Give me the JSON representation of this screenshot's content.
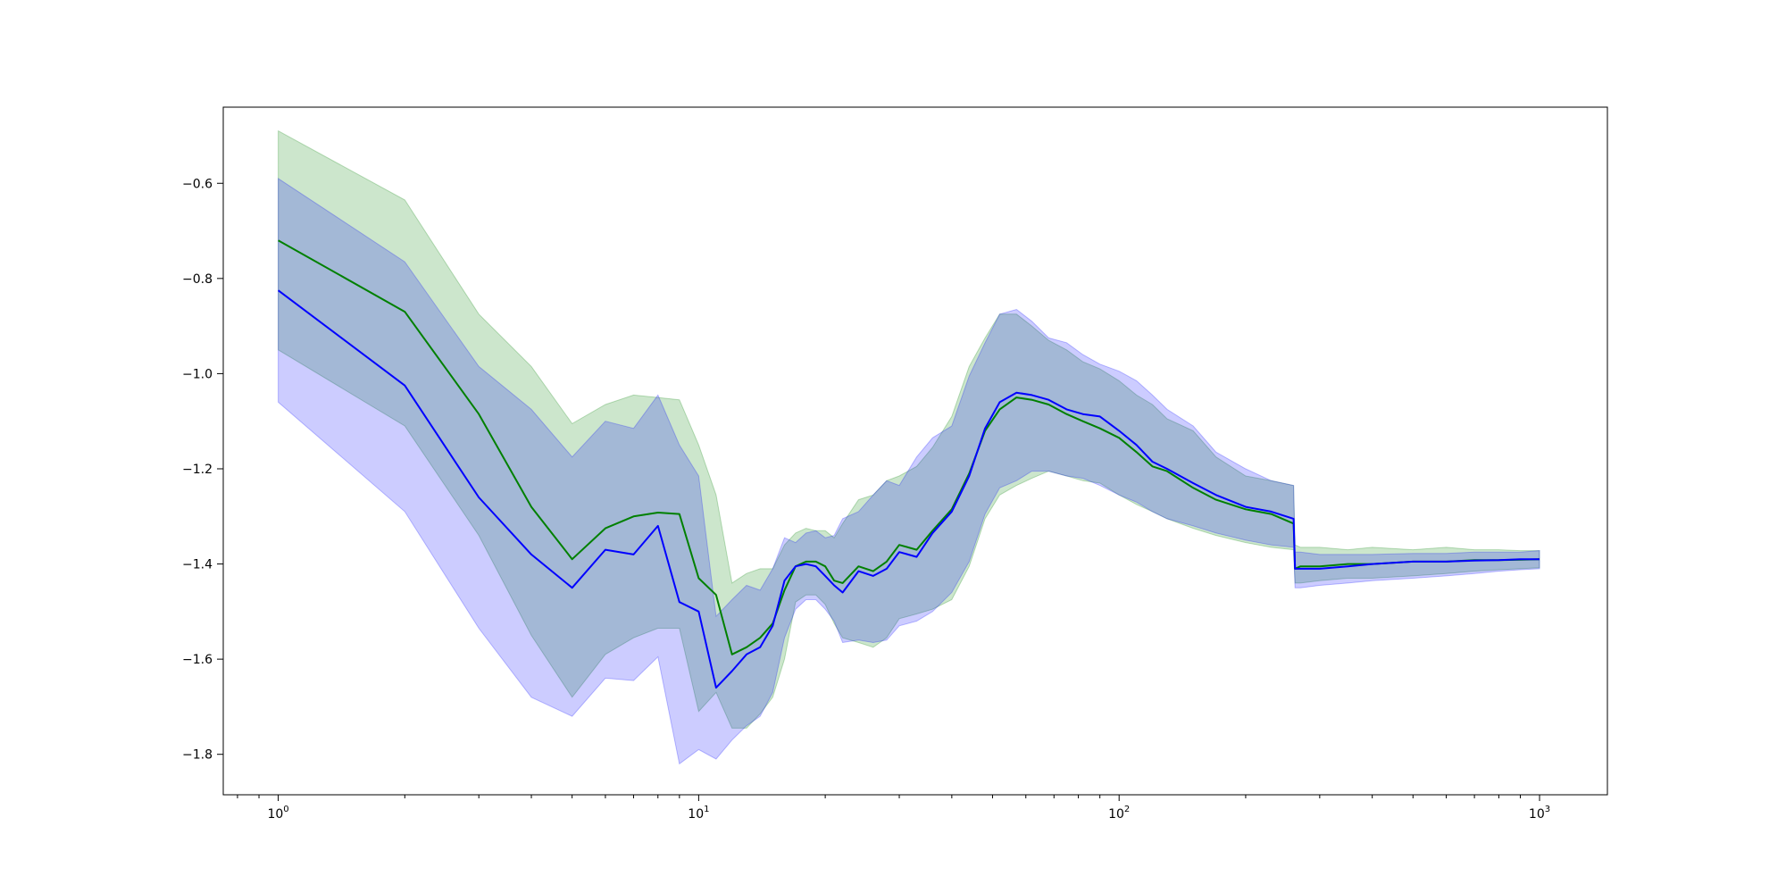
{
  "chart_data": {
    "type": "line",
    "title": "",
    "xlabel": "",
    "ylabel": "",
    "xscale": "log",
    "xlim": [
      0.74,
      1450
    ],
    "ylim": [
      -1.885,
      -0.44
    ],
    "grid": false,
    "legend": "none",
    "x_ticks": [
      {
        "value": 1,
        "base": "10",
        "exp": "0"
      },
      {
        "value": 10,
        "base": "10",
        "exp": "1"
      },
      {
        "value": 100,
        "base": "10",
        "exp": "2"
      },
      {
        "value": 1000,
        "base": "10",
        "exp": "3"
      }
    ],
    "y_ticks": [
      {
        "value": -0.6,
        "label": "−0.6"
      },
      {
        "value": -0.8,
        "label": "−0.8"
      },
      {
        "value": -1.0,
        "label": "−1.0"
      },
      {
        "value": -1.2,
        "label": "−1.2"
      },
      {
        "value": -1.4,
        "label": "−1.4"
      },
      {
        "value": -1.6,
        "label": "−1.6"
      },
      {
        "value": -1.8,
        "label": "−1.8"
      }
    ],
    "series": [
      {
        "color": "#008000",
        "band_color": "#008000",
        "band_opacity": 0.2,
        "x": [
          1,
          2,
          3,
          4,
          5,
          6,
          7,
          8,
          9,
          10,
          11,
          12,
          13,
          14,
          15,
          16,
          17,
          18,
          19,
          20,
          21,
          22,
          24,
          26,
          28,
          30,
          33,
          36,
          40,
          44,
          48,
          52,
          57,
          62,
          68,
          75,
          82,
          90,
          100,
          110,
          120,
          130,
          150,
          170,
          200,
          230,
          260,
          262,
          270,
          300,
          350,
          400,
          500,
          600,
          700,
          800,
          900,
          1000
        ],
        "y": [
          -0.72,
          -0.87,
          -1.085,
          -1.28,
          -1.39,
          -1.325,
          -1.3,
          -1.292,
          -1.295,
          -1.43,
          -1.465,
          -1.59,
          -1.575,
          -1.555,
          -1.525,
          -1.455,
          -1.405,
          -1.395,
          -1.395,
          -1.405,
          -1.435,
          -1.44,
          -1.405,
          -1.415,
          -1.395,
          -1.36,
          -1.37,
          -1.33,
          -1.285,
          -1.21,
          -1.12,
          -1.075,
          -1.05,
          -1.055,
          -1.065,
          -1.085,
          -1.1,
          -1.115,
          -1.135,
          -1.165,
          -1.195,
          -1.205,
          -1.24,
          -1.265,
          -1.285,
          -1.295,
          -1.315,
          -1.41,
          -1.405,
          -1.405,
          -1.4,
          -1.4,
          -1.395,
          -1.395,
          -1.392,
          -1.392,
          -1.391,
          -1.39
        ],
        "upper": [
          -0.49,
          -0.635,
          -0.875,
          -0.985,
          -1.105,
          -1.065,
          -1.045,
          -1.05,
          -1.055,
          -1.15,
          -1.255,
          -1.44,
          -1.42,
          -1.41,
          -1.41,
          -1.36,
          -1.335,
          -1.325,
          -1.33,
          -1.33,
          -1.345,
          -1.315,
          -1.265,
          -1.255,
          -1.225,
          -1.215,
          -1.195,
          -1.155,
          -1.09,
          -0.985,
          -0.925,
          -0.875,
          -0.875,
          -0.9,
          -0.93,
          -0.95,
          -0.975,
          -0.99,
          -1.015,
          -1.045,
          -1.065,
          -1.095,
          -1.12,
          -1.175,
          -1.215,
          -1.225,
          -1.235,
          -1.36,
          -1.365,
          -1.365,
          -1.37,
          -1.365,
          -1.37,
          -1.365,
          -1.37,
          -1.37,
          -1.372,
          -1.372
        ],
        "lower": [
          -0.95,
          -1.11,
          -1.34,
          -1.55,
          -1.68,
          -1.59,
          -1.555,
          -1.535,
          -1.535,
          -1.71,
          -1.67,
          -1.745,
          -1.745,
          -1.715,
          -1.68,
          -1.6,
          -1.48,
          -1.465,
          -1.465,
          -1.485,
          -1.525,
          -1.555,
          -1.565,
          -1.575,
          -1.555,
          -1.515,
          -1.505,
          -1.495,
          -1.475,
          -1.405,
          -1.305,
          -1.255,
          -1.235,
          -1.22,
          -1.205,
          -1.215,
          -1.225,
          -1.23,
          -1.255,
          -1.275,
          -1.29,
          -1.305,
          -1.325,
          -1.34,
          -1.355,
          -1.365,
          -1.37,
          -1.44,
          -1.44,
          -1.435,
          -1.43,
          -1.43,
          -1.425,
          -1.42,
          -1.415,
          -1.412,
          -1.41,
          -1.408
        ]
      },
      {
        "color": "#0000ff",
        "band_color": "#0000ff",
        "band_opacity": 0.2,
        "x": [
          1,
          2,
          3,
          4,
          5,
          6,
          7,
          8,
          9,
          10,
          11,
          12,
          13,
          14,
          15,
          16,
          17,
          18,
          19,
          20,
          21,
          22,
          24,
          26,
          28,
          30,
          33,
          36,
          40,
          44,
          48,
          52,
          57,
          62,
          68,
          75,
          82,
          90,
          100,
          110,
          120,
          130,
          150,
          170,
          200,
          230,
          260,
          262,
          270,
          300,
          350,
          400,
          500,
          600,
          700,
          800,
          900,
          1000
        ],
        "y": [
          -0.825,
          -1.025,
          -1.26,
          -1.38,
          -1.45,
          -1.37,
          -1.38,
          -1.32,
          -1.48,
          -1.5,
          -1.66,
          -1.625,
          -1.59,
          -1.575,
          -1.53,
          -1.435,
          -1.405,
          -1.4,
          -1.405,
          -1.425,
          -1.445,
          -1.46,
          -1.415,
          -1.425,
          -1.41,
          -1.375,
          -1.385,
          -1.335,
          -1.29,
          -1.215,
          -1.115,
          -1.06,
          -1.04,
          -1.045,
          -1.055,
          -1.075,
          -1.085,
          -1.09,
          -1.12,
          -1.15,
          -1.185,
          -1.2,
          -1.23,
          -1.255,
          -1.28,
          -1.29,
          -1.305,
          -1.41,
          -1.41,
          -1.41,
          -1.405,
          -1.4,
          -1.395,
          -1.395,
          -1.393,
          -1.392,
          -1.39,
          -1.39
        ],
        "upper": [
          -0.59,
          -0.765,
          -0.985,
          -1.075,
          -1.175,
          -1.1,
          -1.115,
          -1.045,
          -1.15,
          -1.215,
          -1.51,
          -1.475,
          -1.445,
          -1.455,
          -1.41,
          -1.345,
          -1.355,
          -1.335,
          -1.33,
          -1.345,
          -1.34,
          -1.305,
          -1.29,
          -1.255,
          -1.225,
          -1.235,
          -1.175,
          -1.135,
          -1.11,
          -1.005,
          -0.935,
          -0.875,
          -0.865,
          -0.89,
          -0.925,
          -0.935,
          -0.96,
          -0.98,
          -0.995,
          -1.015,
          -1.045,
          -1.075,
          -1.11,
          -1.165,
          -1.2,
          -1.225,
          -1.235,
          -1.375,
          -1.375,
          -1.38,
          -1.38,
          -1.38,
          -1.378,
          -1.378,
          -1.375,
          -1.375,
          -1.375,
          -1.372
        ],
        "lower": [
          -1.06,
          -1.29,
          -1.535,
          -1.68,
          -1.72,
          -1.64,
          -1.645,
          -1.595,
          -1.82,
          -1.79,
          -1.81,
          -1.77,
          -1.74,
          -1.72,
          -1.67,
          -1.555,
          -1.495,
          -1.475,
          -1.475,
          -1.495,
          -1.52,
          -1.565,
          -1.56,
          -1.565,
          -1.56,
          -1.53,
          -1.52,
          -1.5,
          -1.46,
          -1.395,
          -1.295,
          -1.24,
          -1.225,
          -1.205,
          -1.205,
          -1.215,
          -1.22,
          -1.235,
          -1.255,
          -1.27,
          -1.29,
          -1.305,
          -1.32,
          -1.335,
          -1.35,
          -1.36,
          -1.365,
          -1.45,
          -1.45,
          -1.445,
          -1.44,
          -1.435,
          -1.43,
          -1.425,
          -1.42,
          -1.415,
          -1.412,
          -1.41
        ]
      }
    ]
  }
}
